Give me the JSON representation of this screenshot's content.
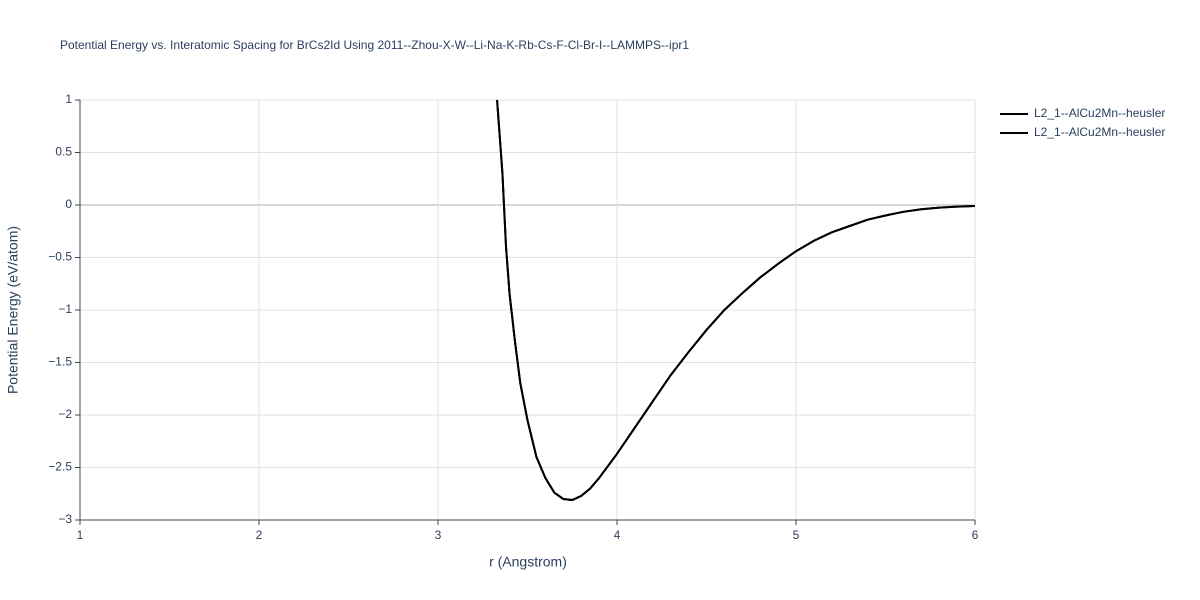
{
  "chart_data": {
    "type": "line",
    "title": "Potential Energy vs. Interatomic Spacing for BrCs2Id Using 2011--Zhou-X-W--Li-Na-K-Rb-Cs-F-Cl-Br-I--LAMMPS--ipr1",
    "x_label": "r (Angstrom)",
    "y_label": "Potential Energy (eV/atom)",
    "x": [
      3.33,
      3.36,
      3.38,
      3.4,
      3.43,
      3.46,
      3.5,
      3.55,
      3.6,
      3.65,
      3.7,
      3.75,
      3.8,
      3.85,
      3.9,
      4.0,
      4.1,
      4.2,
      4.3,
      4.4,
      4.5,
      4.6,
      4.7,
      4.8,
      4.9,
      5.0,
      5.1,
      5.2,
      5.3,
      5.4,
      5.5,
      5.6,
      5.7,
      5.8,
      5.9,
      6.0
    ],
    "series": [
      {
        "name": "L2_1--AlCu2Mn--heusler",
        "color": "#000000",
        "values": [
          1.0,
          0.3,
          -0.4,
          -0.85,
          -1.3,
          -1.7,
          -2.05,
          -2.4,
          -2.6,
          -2.74,
          -2.8,
          -2.81,
          -2.77,
          -2.7,
          -2.6,
          -2.37,
          -2.12,
          -1.87,
          -1.62,
          -1.4,
          -1.19,
          -1.0,
          -0.84,
          -0.69,
          -0.56,
          -0.44,
          -0.34,
          -0.26,
          -0.2,
          -0.14,
          -0.1,
          -0.065,
          -0.04,
          -0.025,
          -0.015,
          -0.01
        ]
      },
      {
        "name": "L2_1--AlCu2Mn--heusler",
        "color": "#000000",
        "values": [
          1.0,
          0.3,
          -0.4,
          -0.85,
          -1.3,
          -1.7,
          -2.05,
          -2.4,
          -2.6,
          -2.74,
          -2.8,
          -2.81,
          -2.77,
          -2.7,
          -2.6,
          -2.37,
          -2.12,
          -1.87,
          -1.62,
          -1.4,
          -1.19,
          -1.0,
          -0.84,
          -0.69,
          -0.56,
          -0.44,
          -0.34,
          -0.26,
          -0.2,
          -0.14,
          -0.1,
          -0.065,
          -0.04,
          -0.025,
          -0.015,
          -0.01
        ]
      }
    ],
    "xlim": [
      1,
      6
    ],
    "xticks": [
      1,
      2,
      3,
      4,
      5,
      6
    ],
    "ylim": [
      -3,
      1
    ],
    "yticks": [
      {
        "value": -3,
        "label": "−3"
      },
      {
        "value": -2.5,
        "label": "−2.5"
      },
      {
        "value": -2,
        "label": "−2"
      },
      {
        "value": -1.5,
        "label": "−1.5"
      },
      {
        "value": -1,
        "label": "−1"
      },
      {
        "value": -0.5,
        "label": "−0.5"
      },
      0,
      0.5,
      1
    ],
    "grid": true,
    "legend": "right"
  }
}
